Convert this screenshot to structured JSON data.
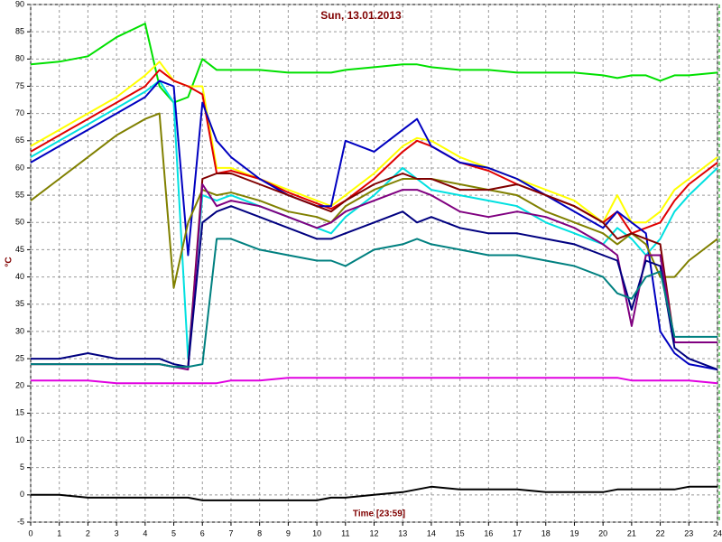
{
  "chart_data": {
    "type": "line",
    "title": "Sun, 13.01.2013",
    "x_label": "Time [23:59]",
    "y_label": "°C",
    "xlim": [
      0,
      24
    ],
    "ylim": [
      -5,
      90
    ],
    "xticks": [
      0,
      1,
      2,
      3,
      4,
      5,
      6,
      7,
      8,
      9,
      10,
      11,
      12,
      13,
      14,
      15,
      16,
      17,
      18,
      19,
      20,
      21,
      22,
      23,
      24
    ],
    "yticks": [
      -5,
      0,
      5,
      10,
      15,
      20,
      25,
      30,
      35,
      40,
      45,
      50,
      55,
      60,
      65,
      70,
      75,
      80,
      85,
      90
    ],
    "grid": true,
    "x": [
      0,
      1,
      2,
      3,
      4,
      4.5,
      5,
      5.5,
      6,
      6.5,
      7,
      8,
      9,
      10,
      10.5,
      11,
      12,
      13,
      13.5,
      14,
      15,
      16,
      17,
      18,
      19,
      20,
      20.5,
      21,
      21.5,
      22,
      22.5,
      23,
      24
    ],
    "series": [
      {
        "color": "#00e000",
        "values": [
          79,
          79.5,
          80.5,
          84,
          86.5,
          75,
          72,
          73,
          80,
          78,
          78,
          78,
          77.5,
          77.5,
          77.5,
          78,
          78.5,
          79,
          79,
          78.5,
          78,
          78,
          77.5,
          77.5,
          77.5,
          77,
          76.5,
          77,
          77,
          76,
          77,
          77,
          77.5
        ]
      },
      {
        "color": "#ffff00",
        "values": [
          64,
          67,
          70,
          73,
          77,
          79.5,
          76,
          75,
          75,
          60,
          60,
          58,
          56,
          54,
          53,
          55,
          59,
          64,
          65.5,
          65,
          62,
          60,
          58,
          56,
          54,
          50,
          55,
          50,
          50,
          52,
          56,
          58,
          62
        ]
      },
      {
        "color": "#e00000",
        "values": [
          63,
          66,
          69,
          72,
          75,
          78,
          76,
          75,
          73.5,
          59,
          59.5,
          58,
          55.5,
          53.5,
          52.5,
          54,
          58,
          63,
          65,
          64,
          61,
          59.5,
          57,
          55,
          53,
          50,
          52,
          48,
          49,
          50,
          54,
          57,
          61
        ]
      },
      {
        "color": "#00e0e0",
        "values": [
          62,
          65,
          68,
          71,
          74,
          76,
          72,
          25,
          55,
          54,
          55,
          53,
          51,
          49,
          48,
          51,
          55,
          60,
          58,
          56,
          55,
          54,
          53,
          50,
          48,
          46,
          49,
          47,
          44,
          47,
          52,
          55,
          60
        ]
      },
      {
        "color": "#0000c0",
        "values": [
          61,
          64,
          67,
          70,
          73,
          76,
          75,
          44,
          72,
          65,
          62,
          58,
          55,
          53,
          53,
          65,
          63,
          67,
          69,
          64,
          61,
          60,
          58,
          55,
          52,
          49,
          52,
          50,
          48,
          30,
          26,
          24,
          23
        ]
      },
      {
        "color": "#808000",
        "values": [
          54,
          58,
          62,
          66,
          69,
          70,
          38,
          50,
          56,
          55,
          55.5,
          54,
          52,
          51,
          50,
          53,
          56,
          58,
          58,
          58,
          57,
          56,
          55,
          52,
          50,
          48,
          46,
          48,
          46,
          40,
          40,
          43,
          47
        ]
      },
      {
        "color": "#800000",
        "values": [
          24,
          24,
          24,
          24,
          24,
          24,
          23.5,
          23.5,
          58,
          59,
          59,
          57,
          55,
          53,
          52,
          54,
          57,
          59,
          58,
          58,
          56,
          56,
          57,
          55,
          53,
          50,
          47,
          48,
          47,
          46,
          28,
          28,
          28
        ]
      },
      {
        "color": "#800080",
        "values": [
          24,
          24,
          24,
          24,
          24,
          24,
          23.5,
          23,
          57,
          53,
          54,
          53,
          51,
          49,
          50,
          52,
          54,
          56,
          56,
          55,
          52,
          51,
          52,
          51,
          49,
          46,
          44,
          31,
          44,
          44,
          28,
          28,
          28
        ]
      },
      {
        "color": "#000080",
        "values": [
          25,
          25,
          26,
          25,
          25,
          25,
          24,
          23.5,
          50,
          52,
          53,
          51,
          49,
          47,
          47,
          48,
          50,
          52,
          50,
          51,
          49,
          48,
          48,
          47,
          46,
          44,
          43,
          34,
          43,
          42,
          27,
          25,
          23
        ]
      },
      {
        "color": "#008080",
        "values": [
          24,
          24,
          24,
          24,
          24,
          24,
          23.5,
          23.5,
          24,
          47,
          47,
          45,
          44,
          43,
          43,
          42,
          45,
          46,
          47,
          46,
          45,
          44,
          44,
          43,
          42,
          40,
          37,
          36,
          40,
          41,
          29,
          29,
          29
        ]
      },
      {
        "color": "#e000e0",
        "values": [
          21,
          21,
          21,
          20.5,
          20.5,
          20.5,
          20.5,
          20.5,
          20.5,
          20.5,
          21,
          21,
          21.5,
          21.5,
          21.5,
          21.5,
          21.5,
          21.5,
          21.5,
          21.5,
          21.5,
          21.5,
          21.5,
          21.5,
          21.5,
          21.5,
          21.5,
          21,
          21,
          21,
          21,
          21,
          20.5
        ]
      },
      {
        "color": "#000000",
        "values": [
          0,
          0,
          -0.5,
          -0.5,
          -0.5,
          -0.5,
          -0.5,
          -0.5,
          -1,
          -1,
          -1,
          -1,
          -1,
          -1,
          -0.5,
          -0.5,
          0,
          0.5,
          1,
          1.5,
          1,
          1,
          1,
          0.5,
          0.5,
          0.5,
          1,
          1,
          1,
          1,
          1,
          1.5,
          1.5
        ]
      }
    ]
  }
}
